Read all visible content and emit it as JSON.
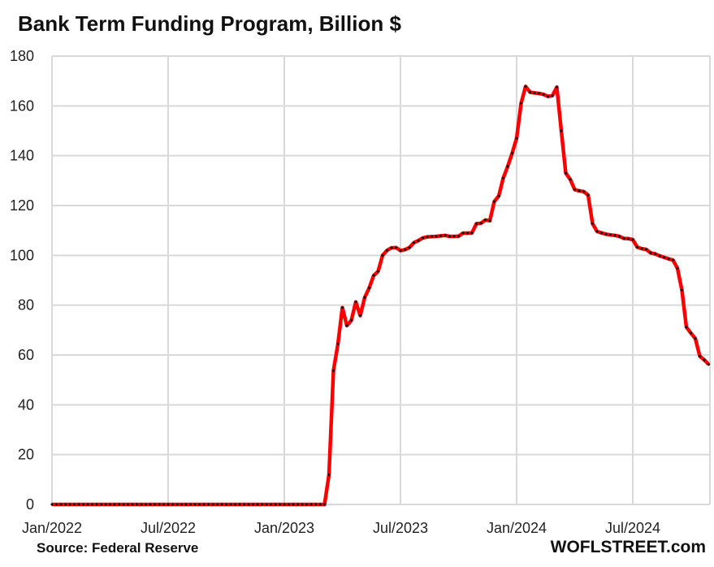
{
  "chart_data": {
    "type": "line",
    "title": "Bank Term Funding Program, Billion $",
    "xlabel": "",
    "ylabel": "",
    "ylim": [
      0,
      180
    ],
    "y_ticks": [
      0,
      20,
      40,
      60,
      80,
      100,
      120,
      140,
      160,
      180
    ],
    "x_unit": "weeks since first week of Jan 2022",
    "x_ticks": [
      {
        "label": "Jan/2022",
        "week": 0
      },
      {
        "label": "Jul/2022",
        "week": 26
      },
      {
        "label": "Jan/2023",
        "week": 52
      },
      {
        "label": "Jul/2023",
        "week": 78
      },
      {
        "label": "Jan/2024",
        "week": 104
      },
      {
        "label": "Jul/2024",
        "week": 130
      }
    ],
    "grid": true,
    "series": [
      {
        "name": "Bank Term Funding Program",
        "color": "#ff0000",
        "marker_color": "#111111",
        "values": [
          0,
          0,
          0,
          0,
          0,
          0,
          0,
          0,
          0,
          0,
          0,
          0,
          0,
          0,
          0,
          0,
          0,
          0,
          0,
          0,
          0,
          0,
          0,
          0,
          0,
          0,
          0,
          0,
          0,
          0,
          0,
          0,
          0,
          0,
          0,
          0,
          0,
          0,
          0,
          0,
          0,
          0,
          0,
          0,
          0,
          0,
          0,
          0,
          0,
          0,
          0,
          0,
          0,
          0,
          0,
          0,
          0,
          0,
          0,
          0,
          0,
          0,
          11.9,
          53.7,
          64.4,
          79.0,
          71.8,
          73.9,
          81.3,
          75.8,
          83.1,
          86.9,
          91.9,
          93.6,
          100.0,
          102.0,
          103.0,
          103.1,
          101.9,
          102.3,
          103.1,
          105.1,
          105.9,
          107.0,
          107.4,
          107.5,
          107.6,
          107.8,
          108.0,
          107.6,
          107.6,
          107.7,
          108.9,
          108.9,
          109.0,
          112.7,
          112.9,
          114.2,
          113.9,
          121.6,
          123.8,
          131.0,
          135.7,
          141.0,
          147.0,
          161.0,
          167.8,
          165.5,
          165.2,
          165.0,
          164.6,
          163.8,
          164.1,
          167.5,
          150.0,
          133.0,
          130.5,
          126.4,
          125.9,
          125.6,
          124.2,
          112.7,
          109.6,
          109.0,
          108.5,
          108.2,
          108.0,
          107.6,
          106.8,
          106.7,
          106.3,
          103.3,
          102.7,
          102.4,
          101.0,
          100.6,
          99.8,
          99.2,
          98.6,
          98.1,
          94.8,
          86.0,
          71.2,
          68.8,
          66.6,
          59.5,
          58.0,
          56.2
        ]
      }
    ],
    "source": "Source: Federal Reserve",
    "brand": "WOFLSTREET.com"
  }
}
